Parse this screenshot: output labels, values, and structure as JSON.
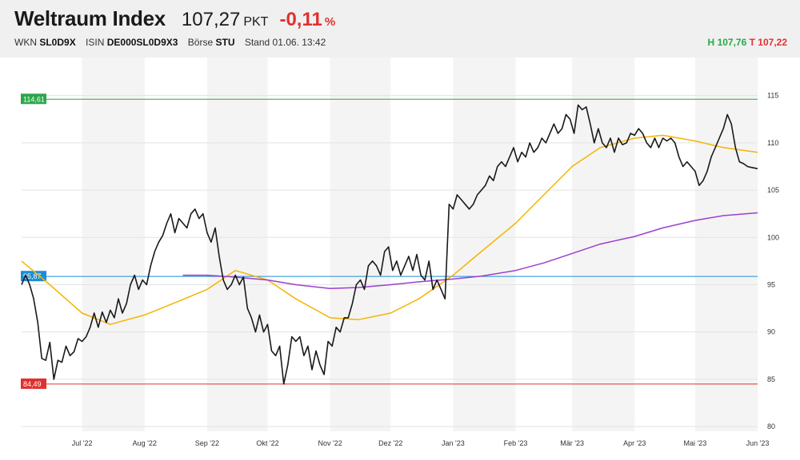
{
  "header": {
    "title": "Weltraum Index",
    "price": "107,27",
    "unit": "PKT",
    "change": "-0,11",
    "change_unit": "%",
    "wkn_label": "WKN",
    "wkn": "SL0D9X",
    "isin_label": "ISIN",
    "isin": "DE000SL0D9X3",
    "exchange_label": "Börse",
    "exchange": "STU",
    "stand": "Stand 01.06. 13:42",
    "high_label": "H",
    "high": "107,76",
    "low_label": "T",
    "low": "107,22"
  },
  "colors": {
    "price_line": "#1a1a1a",
    "ma_short": "#f5b400",
    "ma_long": "#9b3fd0",
    "high_line": "#2ca64a",
    "low_line": "#e0312f",
    "ref_line": "#1a8fd8",
    "band": "#f4f4f4"
  },
  "chart_data": {
    "type": "line",
    "x_ticks": [
      "Jul '22",
      "Aug '22",
      "Sep '22",
      "Okt '22",
      "Nov '22",
      "Dez '22",
      "Jan '23",
      "Feb '23",
      "Mär '23",
      "Apr '23",
      "Mai '23",
      "Jun '23"
    ],
    "x_tick_dates": [
      "2022-07-01",
      "2022-08-01",
      "2022-09-01",
      "2022-10-01",
      "2022-11-01",
      "2022-12-01",
      "2023-01-01",
      "2023-02-01",
      "2023-03-01",
      "2023-04-01",
      "2023-05-01",
      "2023-06-01"
    ],
    "x_range": [
      "2022-06-01",
      "2023-06-01"
    ],
    "y_ticks": [
      80,
      85,
      90,
      95,
      100,
      105,
      110,
      115
    ],
    "ylim": [
      79.5,
      117
    ],
    "grid": true,
    "reference_lines": [
      {
        "label": "114,61",
        "value": 114.61,
        "color": "#2ca64a"
      },
      {
        "label": "95,87",
        "value": 95.87,
        "color": "#1a8fd8"
      },
      {
        "label": "84,49",
        "value": 84.49,
        "color": "#e0312f"
      }
    ],
    "series": [
      {
        "color": "#1a1a1a",
        "points": [
          [
            "2022-06-01",
            95.0
          ],
          [
            "2022-06-03",
            96.0
          ],
          [
            "2022-06-05",
            95.0
          ],
          [
            "2022-06-07",
            93.5
          ],
          [
            "2022-06-09",
            91.0
          ],
          [
            "2022-06-11",
            87.2
          ],
          [
            "2022-06-13",
            87.0
          ],
          [
            "2022-06-15",
            88.9
          ],
          [
            "2022-06-17",
            85.0
          ],
          [
            "2022-06-19",
            87.0
          ],
          [
            "2022-06-21",
            86.8
          ],
          [
            "2022-06-23",
            88.5
          ],
          [
            "2022-06-25",
            87.5
          ],
          [
            "2022-06-27",
            87.9
          ],
          [
            "2022-06-29",
            89.3
          ],
          [
            "2022-07-01",
            89.0
          ],
          [
            "2022-07-03",
            89.5
          ],
          [
            "2022-07-05",
            90.5
          ],
          [
            "2022-07-07",
            92.0
          ],
          [
            "2022-07-09",
            90.5
          ],
          [
            "2022-07-11",
            92.1
          ],
          [
            "2022-07-13",
            91.0
          ],
          [
            "2022-07-15",
            92.3
          ],
          [
            "2022-07-17",
            91.5
          ],
          [
            "2022-07-19",
            93.5
          ],
          [
            "2022-07-21",
            92.0
          ],
          [
            "2022-07-23",
            93.0
          ],
          [
            "2022-07-25",
            95.0
          ],
          [
            "2022-07-27",
            96.0
          ],
          [
            "2022-07-29",
            94.5
          ],
          [
            "2022-07-31",
            95.5
          ],
          [
            "2022-08-02",
            95.0
          ],
          [
            "2022-08-04",
            97.0
          ],
          [
            "2022-08-06",
            98.5
          ],
          [
            "2022-08-08",
            99.5
          ],
          [
            "2022-08-10",
            100.2
          ],
          [
            "2022-08-12",
            101.5
          ],
          [
            "2022-08-14",
            102.5
          ],
          [
            "2022-08-16",
            100.5
          ],
          [
            "2022-08-18",
            102.0
          ],
          [
            "2022-08-20",
            101.5
          ],
          [
            "2022-08-22",
            101.0
          ],
          [
            "2022-08-24",
            102.5
          ],
          [
            "2022-08-26",
            103.0
          ],
          [
            "2022-08-28",
            102.0
          ],
          [
            "2022-08-30",
            102.5
          ],
          [
            "2022-09-01",
            100.5
          ],
          [
            "2022-09-03",
            99.5
          ],
          [
            "2022-09-05",
            101.0
          ],
          [
            "2022-09-07",
            98.0
          ],
          [
            "2022-09-09",
            95.5
          ],
          [
            "2022-09-11",
            94.5
          ],
          [
            "2022-09-13",
            95.0
          ],
          [
            "2022-09-15",
            96.0
          ],
          [
            "2022-09-17",
            95.0
          ],
          [
            "2022-09-19",
            95.8
          ],
          [
            "2022-09-21",
            92.5
          ],
          [
            "2022-09-23",
            91.5
          ],
          [
            "2022-09-25",
            90.0
          ],
          [
            "2022-09-27",
            91.8
          ],
          [
            "2022-09-29",
            90.0
          ],
          [
            "2022-10-01",
            90.8
          ],
          [
            "2022-10-03",
            88.0
          ],
          [
            "2022-10-05",
            87.5
          ],
          [
            "2022-10-07",
            88.5
          ],
          [
            "2022-10-09",
            84.5
          ],
          [
            "2022-10-11",
            86.5
          ],
          [
            "2022-10-13",
            89.5
          ],
          [
            "2022-10-15",
            89.0
          ],
          [
            "2022-10-17",
            89.5
          ],
          [
            "2022-10-19",
            87.5
          ],
          [
            "2022-10-21",
            88.5
          ],
          [
            "2022-10-23",
            86.0
          ],
          [
            "2022-10-25",
            88.0
          ],
          [
            "2022-10-27",
            86.5
          ],
          [
            "2022-10-29",
            85.5
          ],
          [
            "2022-10-31",
            89.0
          ],
          [
            "2022-11-02",
            88.5
          ],
          [
            "2022-11-04",
            90.5
          ],
          [
            "2022-11-06",
            90.0
          ],
          [
            "2022-11-08",
            91.5
          ],
          [
            "2022-11-10",
            91.5
          ],
          [
            "2022-11-12",
            93.0
          ],
          [
            "2022-11-14",
            95.0
          ],
          [
            "2022-11-16",
            95.5
          ],
          [
            "2022-11-18",
            94.5
          ],
          [
            "2022-11-20",
            97.0
          ],
          [
            "2022-11-22",
            97.5
          ],
          [
            "2022-11-24",
            97.0
          ],
          [
            "2022-11-26",
            96.0
          ],
          [
            "2022-11-28",
            98.5
          ],
          [
            "2022-11-30",
            99.0
          ],
          [
            "2022-12-02",
            96.5
          ],
          [
            "2022-12-04",
            97.5
          ],
          [
            "2022-12-06",
            96.0
          ],
          [
            "2022-12-08",
            97.0
          ],
          [
            "2022-12-10",
            98.0
          ],
          [
            "2022-12-12",
            96.5
          ],
          [
            "2022-12-14",
            98.2
          ],
          [
            "2022-12-16",
            96.0
          ],
          [
            "2022-12-18",
            95.5
          ],
          [
            "2022-12-20",
            97.5
          ],
          [
            "2022-12-22",
            94.5
          ],
          [
            "2022-12-24",
            95.5
          ],
          [
            "2022-12-26",
            94.5
          ],
          [
            "2022-12-28",
            93.5
          ],
          [
            "2022-12-30",
            103.5
          ],
          [
            "2023-01-01",
            103.0
          ],
          [
            "2023-01-03",
            104.5
          ],
          [
            "2023-01-05",
            104.0
          ],
          [
            "2023-01-07",
            103.5
          ],
          [
            "2023-01-09",
            103.0
          ],
          [
            "2023-01-11",
            103.5
          ],
          [
            "2023-01-13",
            104.5
          ],
          [
            "2023-01-15",
            105.0
          ],
          [
            "2023-01-17",
            105.5
          ],
          [
            "2023-01-19",
            106.5
          ],
          [
            "2023-01-21",
            106.0
          ],
          [
            "2023-01-23",
            107.5
          ],
          [
            "2023-01-25",
            108.0
          ],
          [
            "2023-01-27",
            107.5
          ],
          [
            "2023-01-29",
            108.5
          ],
          [
            "2023-01-31",
            109.5
          ],
          [
            "2023-02-02",
            108.0
          ],
          [
            "2023-02-04",
            109.0
          ],
          [
            "2023-02-06",
            108.5
          ],
          [
            "2023-02-08",
            110.0
          ],
          [
            "2023-02-10",
            109.0
          ],
          [
            "2023-02-12",
            109.5
          ],
          [
            "2023-02-14",
            110.5
          ],
          [
            "2023-02-16",
            110.0
          ],
          [
            "2023-02-18",
            111.0
          ],
          [
            "2023-02-20",
            112.0
          ],
          [
            "2023-02-22",
            111.0
          ],
          [
            "2023-02-24",
            111.5
          ],
          [
            "2023-02-26",
            113.0
          ],
          [
            "2023-02-28",
            112.5
          ],
          [
            "2023-03-02",
            111.0
          ],
          [
            "2023-03-04",
            114.0
          ],
          [
            "2023-03-06",
            113.5
          ],
          [
            "2023-03-08",
            113.8
          ],
          [
            "2023-03-10",
            112.0
          ],
          [
            "2023-03-12",
            110.0
          ],
          [
            "2023-03-14",
            111.5
          ],
          [
            "2023-03-16",
            110.0
          ],
          [
            "2023-03-18",
            109.5
          ],
          [
            "2023-03-20",
            110.5
          ],
          [
            "2023-03-22",
            109.0
          ],
          [
            "2023-03-24",
            110.5
          ],
          [
            "2023-03-26",
            109.8
          ],
          [
            "2023-03-28",
            110.0
          ],
          [
            "2023-03-30",
            111.0
          ],
          [
            "2023-04-01",
            110.8
          ],
          [
            "2023-04-03",
            111.5
          ],
          [
            "2023-04-05",
            111.0
          ],
          [
            "2023-04-07",
            110.0
          ],
          [
            "2023-04-09",
            109.5
          ],
          [
            "2023-04-11",
            110.5
          ],
          [
            "2023-04-13",
            109.5
          ],
          [
            "2023-04-15",
            110.5
          ],
          [
            "2023-04-17",
            110.2
          ],
          [
            "2023-04-19",
            110.5
          ],
          [
            "2023-04-21",
            110.0
          ],
          [
            "2023-04-23",
            108.5
          ],
          [
            "2023-04-25",
            107.5
          ],
          [
            "2023-04-27",
            108.0
          ],
          [
            "2023-04-29",
            107.5
          ],
          [
            "2023-05-01",
            107.0
          ],
          [
            "2023-05-03",
            105.5
          ],
          [
            "2023-05-05",
            106.0
          ],
          [
            "2023-05-07",
            107.0
          ],
          [
            "2023-05-09",
            108.5
          ],
          [
            "2023-05-11",
            109.5
          ],
          [
            "2023-05-13",
            110.5
          ],
          [
            "2023-05-15",
            111.5
          ],
          [
            "2023-05-17",
            113.0
          ],
          [
            "2023-05-19",
            112.0
          ],
          [
            "2023-05-21",
            109.5
          ],
          [
            "2023-05-23",
            108.0
          ],
          [
            "2023-05-25",
            107.8
          ],
          [
            "2023-05-27",
            107.5
          ],
          [
            "2023-05-29",
            107.4
          ],
          [
            "2023-06-01",
            107.27
          ]
        ]
      },
      {
        "color": "#f5b400",
        "points": [
          [
            "2022-06-01",
            97.5
          ],
          [
            "2022-06-15",
            95.0
          ],
          [
            "2022-07-01",
            92.0
          ],
          [
            "2022-07-15",
            90.8
          ],
          [
            "2022-08-01",
            91.8
          ],
          [
            "2022-08-15",
            93.0
          ],
          [
            "2022-09-01",
            94.5
          ],
          [
            "2022-09-15",
            96.5
          ],
          [
            "2022-10-01",
            95.5
          ],
          [
            "2022-10-15",
            93.5
          ],
          [
            "2022-11-01",
            91.5
          ],
          [
            "2022-11-15",
            91.3
          ],
          [
            "2022-12-01",
            92.0
          ],
          [
            "2022-12-15",
            93.5
          ],
          [
            "2023-01-01",
            96.0
          ],
          [
            "2023-01-15",
            98.5
          ],
          [
            "2023-02-01",
            101.5
          ],
          [
            "2023-02-15",
            104.5
          ],
          [
            "2023-03-01",
            107.5
          ],
          [
            "2023-03-15",
            109.5
          ],
          [
            "2023-04-01",
            110.5
          ],
          [
            "2023-04-15",
            110.8
          ],
          [
            "2023-05-01",
            110.2
          ],
          [
            "2023-05-15",
            109.5
          ],
          [
            "2023-06-01",
            109.0
          ]
        ]
      },
      {
        "color": "#9b3fd0",
        "points": [
          [
            "2022-08-20",
            96.0
          ],
          [
            "2022-09-01",
            96.0
          ],
          [
            "2022-09-15",
            95.8
          ],
          [
            "2022-10-01",
            95.5
          ],
          [
            "2022-10-15",
            95.0
          ],
          [
            "2022-11-01",
            94.6
          ],
          [
            "2022-11-15",
            94.7
          ],
          [
            "2022-12-01",
            95.0
          ],
          [
            "2022-12-15",
            95.3
          ],
          [
            "2023-01-01",
            95.6
          ],
          [
            "2023-01-15",
            95.9
          ],
          [
            "2023-02-01",
            96.5
          ],
          [
            "2023-02-15",
            97.3
          ],
          [
            "2023-03-01",
            98.3
          ],
          [
            "2023-03-15",
            99.3
          ],
          [
            "2023-04-01",
            100.1
          ],
          [
            "2023-04-15",
            101.0
          ],
          [
            "2023-05-01",
            101.8
          ],
          [
            "2023-05-15",
            102.3
          ],
          [
            "2023-06-01",
            102.6
          ]
        ]
      }
    ]
  }
}
